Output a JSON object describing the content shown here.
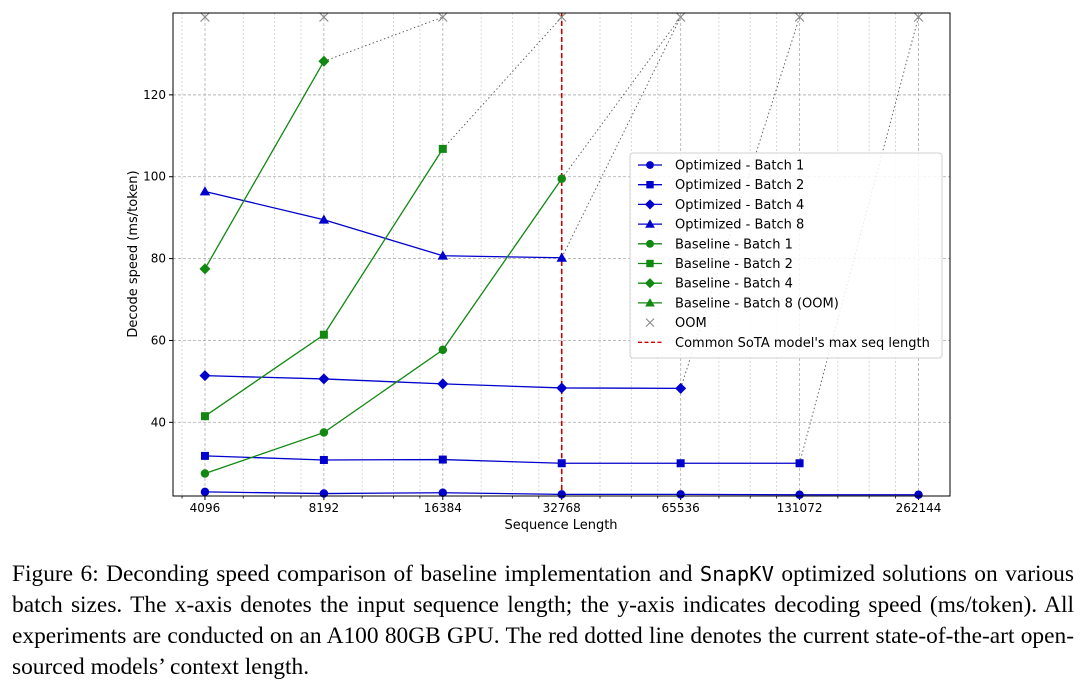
{
  "chart_data": {
    "type": "line",
    "x_scale": "log2",
    "x_ticks": [
      4096,
      8192,
      16384,
      32768,
      65536,
      131072,
      262144
    ],
    "x_tick_labels": [
      "4096",
      "8192",
      "16384",
      "32768",
      "65536",
      "131072",
      "262144"
    ],
    "y_ticks": [
      40,
      60,
      80,
      100,
      120
    ],
    "y_tick_labels": [
      "40",
      "60",
      "80",
      "100",
      "120"
    ],
    "xlim": [
      3400,
      315000
    ],
    "ylim": [
      22,
      140
    ],
    "xlabel": "Sequence Length",
    "ylabel": "Decode speed (ms/token)",
    "grid": true,
    "legend_position": "center-right",
    "oom_y": 139,
    "series": [
      {
        "name": "Optimized - Batch 1",
        "color": "#0000cc",
        "marker": "circle",
        "x": [
          4096,
          8192,
          16384,
          32768,
          65536,
          131072,
          262144
        ],
        "y": [
          23.0,
          22.6,
          22.8,
          22.4,
          22.4,
          22.3,
          22.3
        ]
      },
      {
        "name": "Optimized - Batch 2",
        "color": "#0000cc",
        "marker": "square",
        "x": [
          4096,
          8192,
          16384,
          32768,
          65536,
          131072
        ],
        "y": [
          31.8,
          30.8,
          30.9,
          30.0,
          30.0,
          30.0
        ]
      },
      {
        "name": "Optimized - Batch 4",
        "color": "#0000cc",
        "marker": "diamond",
        "x": [
          4096,
          8192,
          16384,
          32768,
          65536
        ],
        "y": [
          51.4,
          50.6,
          49.4,
          48.4,
          48.3
        ]
      },
      {
        "name": "Optimized - Batch 8",
        "color": "#0000cc",
        "marker": "triangle",
        "x": [
          4096,
          8192,
          16384,
          32768
        ],
        "y": [
          96.4,
          89.5,
          80.7,
          80.2
        ]
      },
      {
        "name": "Baseline - Batch 1",
        "color": "#118811",
        "marker": "circle",
        "x": [
          4096,
          8192,
          16384,
          32768
        ],
        "y": [
          27.5,
          37.5,
          57.7,
          99.5
        ]
      },
      {
        "name": "Baseline - Batch 2",
        "color": "#118811",
        "marker": "square",
        "x": [
          4096,
          8192,
          16384
        ],
        "y": [
          41.5,
          61.4,
          106.8
        ]
      },
      {
        "name": "Baseline - Batch 4",
        "color": "#118811",
        "marker": "diamond",
        "x": [
          4096,
          8192
        ],
        "y": [
          77.5,
          128.2
        ]
      },
      {
        "name": "Baseline - Batch 8 (OOM)",
        "color": "#118811",
        "marker": "triangle",
        "x": [],
        "y": []
      }
    ],
    "oom": {
      "name": "OOM",
      "color": "#888888",
      "marker": "x",
      "x": [
        4096,
        8192,
        16384,
        32768,
        65536,
        131072,
        262144
      ]
    },
    "vline": {
      "name": "Common SoTA model's max seq length",
      "x": 32768,
      "color": "#cc0000"
    },
    "oom_links": [
      {
        "from": [
          8192,
          128.2
        ],
        "to": [
          16384,
          139
        ]
      },
      {
        "from": [
          16384,
          106.8
        ],
        "to": [
          32768,
          139
        ]
      },
      {
        "from": [
          32768,
          99.5
        ],
        "to": [
          65536,
          139
        ]
      },
      {
        "from": [
          32768,
          80.2
        ],
        "to": [
          65536,
          139
        ]
      },
      {
        "from": [
          65536,
          48.3
        ],
        "to": [
          131072,
          139
        ]
      },
      {
        "from": [
          131072,
          30.0
        ],
        "to": [
          262144,
          139
        ]
      }
    ]
  },
  "caption": {
    "part1": "Figure 6: Deconding speed comparison of baseline implementation and ",
    "code": "SnapKV",
    "part2": " optimized solutions on various batch sizes. The x-axis denotes the input sequence length; the y-axis indicates decoding speed (ms/token). All experiments are conducted on an A100 80GB GPU. The red dotted line denotes the current state-of-the-art open-sourced models’ context length."
  }
}
